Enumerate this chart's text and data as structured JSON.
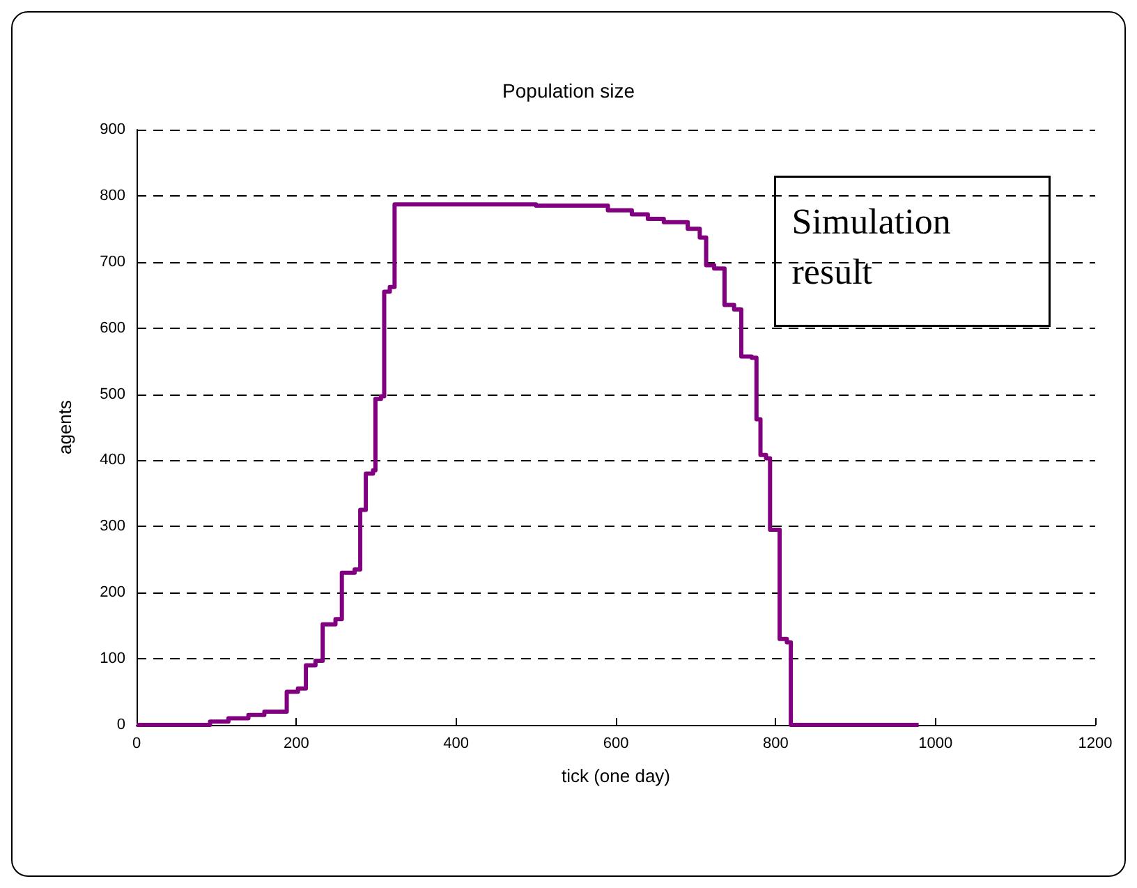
{
  "chart_data": {
    "type": "step",
    "title": "Population size",
    "xlabel": "tick (one day)",
    "ylabel": "agents",
    "x": [
      0,
      92,
      115,
      140,
      160,
      188,
      202,
      212,
      224,
      233,
      249,
      257,
      273,
      280,
      287,
      296,
      299,
      306,
      310,
      317,
      323,
      500,
      590,
      620,
      640,
      660,
      690,
      705,
      713,
      723,
      736,
      748,
      757,
      770,
      776,
      781,
      788,
      793,
      805,
      814,
      819,
      979
    ],
    "series": [
      {
        "color": "#800080",
        "values": [
          0,
          5,
          10,
          15,
          20,
          50,
          55,
          90,
          97,
          152,
          160,
          230,
          235,
          325,
          380,
          385,
          493,
          497,
          655,
          662,
          787,
          785,
          778,
          772,
          765,
          760,
          750,
          737,
          695,
          690,
          635,
          628,
          557,
          555,
          462,
          408,
          403,
          295,
          130,
          125,
          0,
          0
        ]
      }
    ],
    "xlim": [
      0,
      1200
    ],
    "xticks": [
      0,
      200,
      400,
      600,
      800,
      1000,
      1200
    ],
    "ylim": [
      0,
      900
    ],
    "yticks": [
      0,
      100,
      200,
      300,
      400,
      500,
      600,
      700,
      800,
      900
    ],
    "grid": "y",
    "marker": "none",
    "line_style": "solid",
    "annotations": [
      "Simulation result"
    ]
  }
}
